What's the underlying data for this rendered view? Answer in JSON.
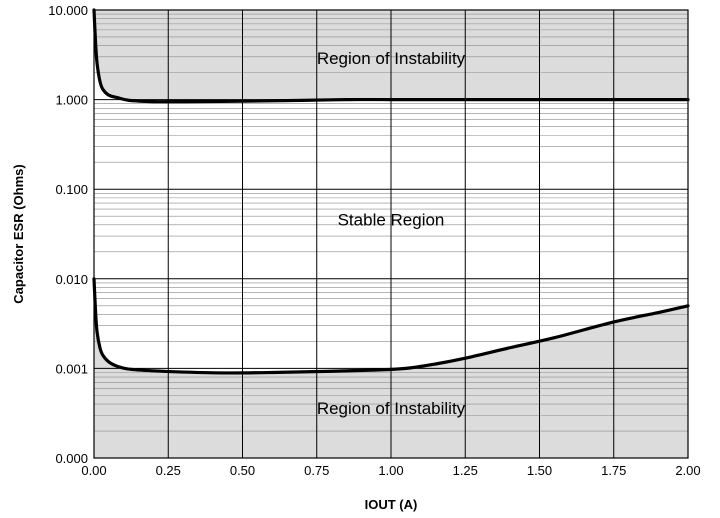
{
  "chart_data": {
    "type": "line",
    "xlabel": "IOUT (A)",
    "ylabel": "Capacitor ESR (Ohms)",
    "xlim": [
      0,
      2
    ],
    "ylim": [
      0.0001,
      10
    ],
    "y_scale": "log",
    "grid": true,
    "x_ticks": [
      0,
      0.25,
      0.5,
      0.75,
      1.0,
      1.25,
      1.5,
      1.75,
      2.0
    ],
    "x_tick_labels": [
      "0.00",
      "0.25",
      "0.50",
      "0.75",
      "1.00",
      "1.25",
      "1.50",
      "1.75",
      "2.00"
    ],
    "y_ticks": [
      0.0001,
      0.001,
      0.01,
      0.1,
      1,
      10
    ],
    "y_tick_labels": [
      "0.000",
      "0.001",
      "0.010",
      "0.100",
      "1.000",
      "10.000"
    ],
    "annotations": [
      {
        "text": "Region of Instability",
        "x": 1.0,
        "y": 2.9
      },
      {
        "text": "Stable Region",
        "x": 1.0,
        "y": 0.046
      },
      {
        "text": "Region of Instability",
        "x": 1.0,
        "y": 0.00036
      }
    ],
    "series": [
      {
        "role": "upper boundary",
        "x": [
          0.0,
          0.005,
          0.01,
          0.02,
          0.03,
          0.05,
          0.08,
          0.12,
          0.2,
          0.3,
          0.5,
          0.7,
          0.85,
          1.0,
          1.5,
          2.0
        ],
        "y": [
          10.0,
          4.5,
          2.6,
          1.6,
          1.3,
          1.12,
          1.05,
          0.98,
          0.95,
          0.95,
          0.96,
          0.98,
          1.0,
          1.0,
          1.0,
          1.0
        ]
      },
      {
        "role": "lower boundary",
        "x": [
          0.0,
          0.005,
          0.01,
          0.02,
          0.03,
          0.05,
          0.08,
          0.12,
          0.2,
          0.3,
          0.45,
          0.6,
          0.8,
          0.95,
          1.05,
          1.15,
          1.25,
          1.4,
          1.55,
          1.75,
          1.9,
          2.0
        ],
        "y": [
          0.01,
          0.0045,
          0.0026,
          0.0017,
          0.0014,
          0.00118,
          0.00105,
          0.00098,
          0.00094,
          0.00091,
          0.00089,
          0.0009,
          0.00093,
          0.00096,
          0.001,
          0.00112,
          0.0013,
          0.0017,
          0.0022,
          0.0033,
          0.0042,
          0.005
        ]
      }
    ]
  }
}
